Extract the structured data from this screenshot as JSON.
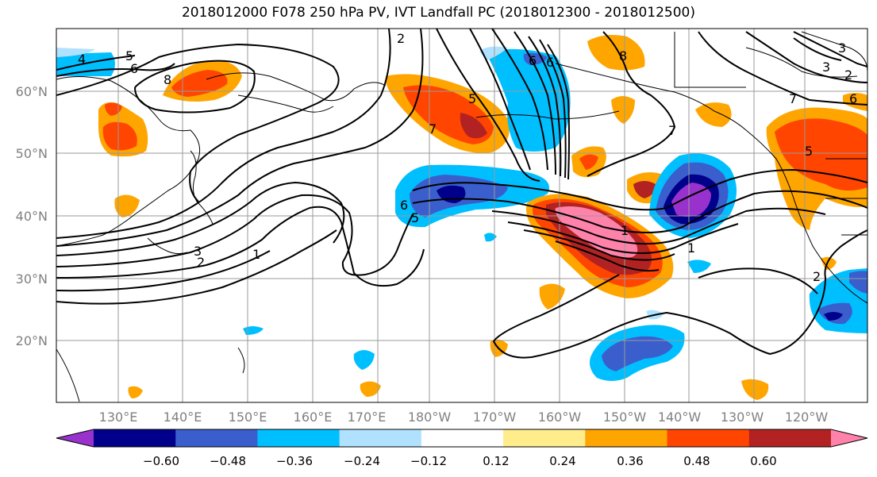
{
  "title": "2018012000 F078 250 hPa PV, IVT Landfall PC (2018012300 - 2018012500)",
  "map": {
    "lat_labels": [
      "60°N",
      "50°N",
      "40°N",
      "30°N",
      "20°N"
    ],
    "lon_labels": [
      "130°E",
      "140°E",
      "150°E",
      "160°E",
      "170°E",
      "180°W",
      "170°W",
      "160°W",
      "150°W",
      "140°W",
      "130°W",
      "120°W"
    ],
    "contour_labels": [
      "4",
      "5",
      "6",
      "8",
      "2",
      "5",
      "7",
      "8",
      "7",
      "6",
      "7",
      "2",
      "5",
      "6",
      "3",
      "1",
      "3",
      "2",
      "1",
      "6",
      "5",
      "6",
      "3",
      "1",
      "2"
    ]
  },
  "colorbar": {
    "tick_labels": [
      "−0.60",
      "−0.48",
      "−0.36",
      "−0.24",
      "−0.12",
      "0.12",
      "0.24",
      "0.36",
      "0.48",
      "0.60"
    ],
    "colors": [
      "#9932cc",
      "#00008b",
      "#3a5fcd",
      "#00bfff",
      "#b0e2ff",
      "#ffffff",
      "#ffec8b",
      "#ffa500",
      "#ff4500",
      "#b22222",
      "#ff82ab"
    ]
  }
}
